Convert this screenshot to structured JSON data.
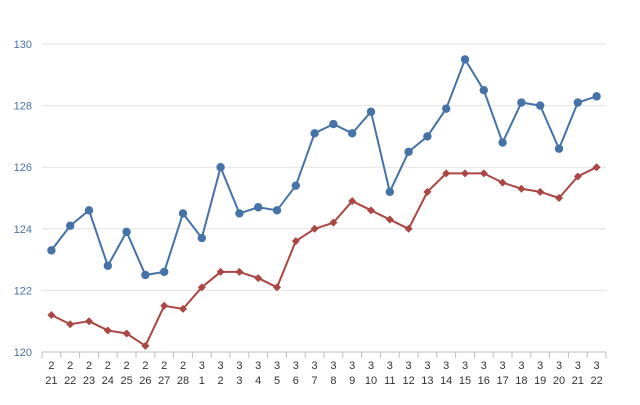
{
  "chart_data": {
    "type": "line",
    "title": "",
    "xlabel": "",
    "ylabel": "",
    "ylim": [
      120,
      130
    ],
    "y_ticks": [
      120,
      122,
      124,
      126,
      128,
      130
    ],
    "grid": "horizontal",
    "legend": "none",
    "categories": [
      {
        "month": "2",
        "day": "21"
      },
      {
        "month": "2",
        "day": "22"
      },
      {
        "month": "2",
        "day": "23"
      },
      {
        "month": "2",
        "day": "24"
      },
      {
        "month": "2",
        "day": "25"
      },
      {
        "month": "2",
        "day": "26"
      },
      {
        "month": "2",
        "day": "27"
      },
      {
        "month": "2",
        "day": "28"
      },
      {
        "month": "3",
        "day": "1"
      },
      {
        "month": "3",
        "day": "2"
      },
      {
        "month": "3",
        "day": "3"
      },
      {
        "month": "3",
        "day": "4"
      },
      {
        "month": "3",
        "day": "5"
      },
      {
        "month": "3",
        "day": "6"
      },
      {
        "month": "3",
        "day": "7"
      },
      {
        "month": "3",
        "day": "8"
      },
      {
        "month": "3",
        "day": "9"
      },
      {
        "month": "3",
        "day": "10"
      },
      {
        "month": "3",
        "day": "11"
      },
      {
        "month": "3",
        "day": "12"
      },
      {
        "month": "3",
        "day": "13"
      },
      {
        "month": "3",
        "day": "14"
      },
      {
        "month": "3",
        "day": "15"
      },
      {
        "month": "3",
        "day": "16"
      },
      {
        "month": "3",
        "day": "17"
      },
      {
        "month": "3",
        "day": "18"
      },
      {
        "month": "3",
        "day": "19"
      },
      {
        "month": "3",
        "day": "20"
      },
      {
        "month": "3",
        "day": "21"
      },
      {
        "month": "3",
        "day": "22"
      }
    ],
    "series": [
      {
        "color": "#4572a7",
        "marker": "circle",
        "values": [
          123.3,
          124.1,
          124.6,
          122.8,
          123.9,
          122.5,
          122.6,
          124.5,
          123.7,
          126.0,
          124.5,
          124.7,
          124.6,
          125.4,
          127.1,
          127.4,
          127.1,
          127.8,
          125.2,
          126.5,
          127.0,
          127.9,
          129.5,
          128.5,
          126.8,
          128.1,
          128.0,
          126.6,
          128.1,
          128.3
        ]
      },
      {
        "color": "#aa4643",
        "marker": "diamond",
        "values": [
          121.2,
          120.9,
          121.0,
          120.7,
          120.6,
          120.2,
          121.5,
          121.4,
          122.1,
          122.6,
          122.6,
          122.4,
          122.1,
          123.6,
          124.0,
          124.2,
          124.9,
          124.6,
          124.3,
          124.0,
          125.2,
          125.8,
          125.8,
          125.8,
          125.5,
          125.3,
          125.2,
          125.0,
          125.7,
          126.0
        ]
      }
    ]
  }
}
